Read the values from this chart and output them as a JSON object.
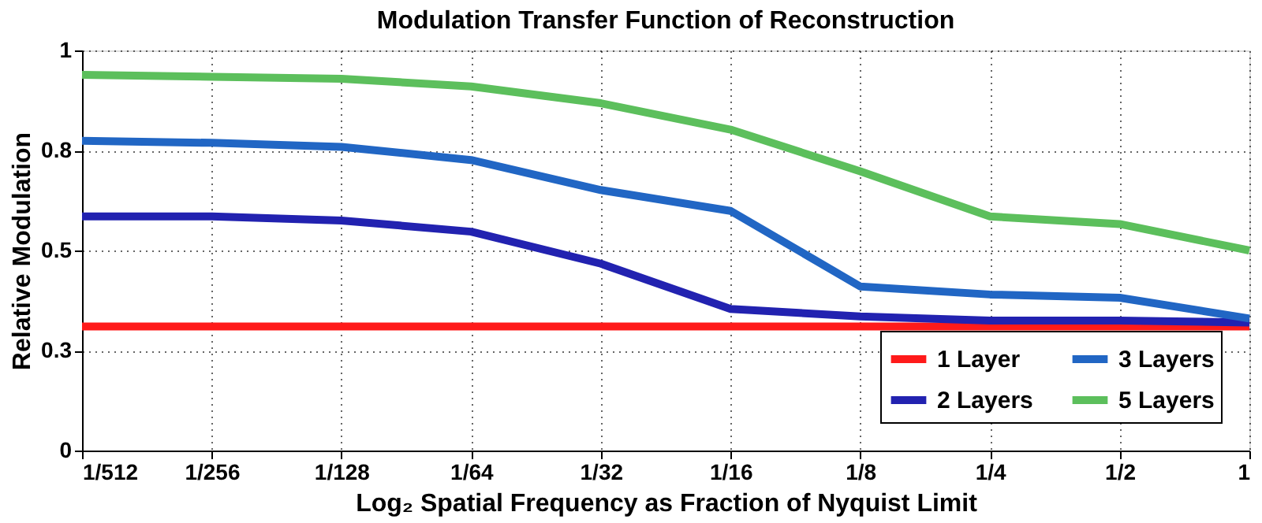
{
  "chart_data": {
    "type": "line",
    "title": "Modulation Transfer Function of Reconstruction",
    "xlabel": "Log₂ Spatial Frequency as Fraction of Nyquist Limit",
    "ylabel": "Relative Modulation",
    "x": [
      0.001953125,
      0.00390625,
      0.0078125,
      0.015625,
      0.03125,
      0.0625,
      0.125,
      0.25,
      0.5,
      1
    ],
    "log": "x",
    "xlim": [
      0.001953125,
      1
    ],
    "xticks": [
      {
        "value": 0.001953125,
        "label": "1/512"
      },
      {
        "value": 0.00390625,
        "label": "1/256"
      },
      {
        "value": 0.0078125,
        "label": "1/128"
      },
      {
        "value": 0.015625,
        "label": "1/64"
      },
      {
        "value": 0.03125,
        "label": "1/32"
      },
      {
        "value": 0.0625,
        "label": "1/16"
      },
      {
        "value": 0.125,
        "label": "1/8"
      },
      {
        "value": 0.25,
        "label": "1/4"
      },
      {
        "value": 0.5,
        "label": "1/2"
      },
      1
    ],
    "ylim": [
      0,
      1
    ],
    "yticks": [
      0,
      {
        "value": 0.25,
        "label": "0.3"
      },
      {
        "value": 0.5,
        "label": "0.5"
      },
      {
        "value": 0.75,
        "label": "0.8"
      },
      1
    ],
    "series": [
      {
        "name": "1 Layer",
        "color": "#ff1a1a",
        "values": [
          0.31,
          0.31,
          0.31,
          0.31,
          0.31,
          0.31,
          0.31,
          0.31,
          0.31,
          0.31
        ]
      },
      {
        "name": "2 Layers",
        "color": "#2222b0",
        "values": [
          0.585,
          0.585,
          0.575,
          0.547,
          0.467,
          0.354,
          0.335,
          0.325,
          0.325,
          0.32
        ]
      },
      {
        "name": "3 Layers",
        "color": "#2166c4",
        "values": [
          0.774,
          0.769,
          0.759,
          0.726,
          0.651,
          0.599,
          0.41,
          0.39,
          0.382,
          0.33
        ]
      },
      {
        "name": "5 Layers",
        "color": "#5cbf5c",
        "values": [
          0.939,
          0.934,
          0.929,
          0.91,
          0.868,
          0.802,
          0.698,
          0.585,
          0.566,
          0.5
        ]
      }
    ],
    "grid": true,
    "legend": "bottom right",
    "marker": "none",
    "line_style": "solid"
  }
}
